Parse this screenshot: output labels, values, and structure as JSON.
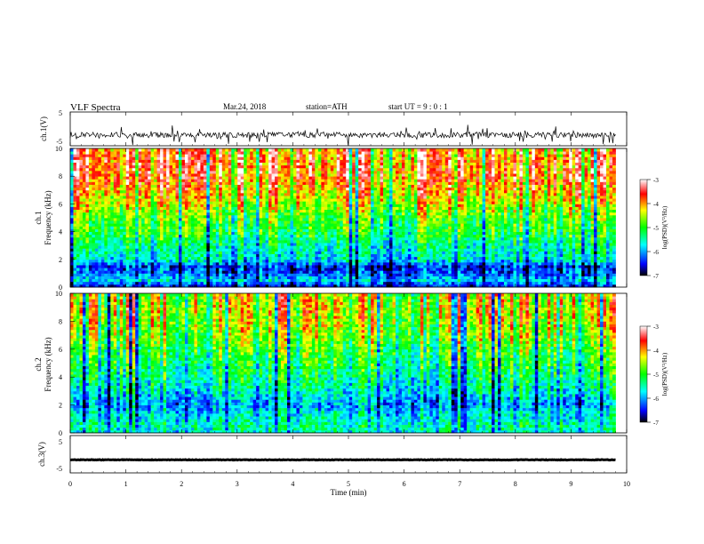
{
  "header": {
    "title": "VLF Spectra",
    "date": "Mar.24, 2018",
    "station": "station=ATH",
    "start_ut": "start UT = 9 : 0 : 1"
  },
  "chart_data": [
    {
      "type": "line",
      "ylabel": "ch.1(V)",
      "ylim": [
        -5,
        5
      ],
      "yticks": [
        "5",
        "-5"
      ],
      "baseline": -1.8,
      "xlim": [
        0,
        10
      ],
      "data_end_min": 9.8
    },
    {
      "type": "heatmap",
      "ylabel_channel": "ch.1",
      "ylabel": "Frequency (kHz)",
      "ylim": [
        0,
        10
      ],
      "yticks": [
        "0",
        "2",
        "4",
        "6",
        "8",
        "10"
      ],
      "xlim": [
        0,
        10
      ],
      "data_end_min": 9.8,
      "colorbar": {
        "label": "log(PSD)(V²/Hz)",
        "ticks": [
          "-3",
          "-4",
          "-5",
          "-6",
          "-7"
        ],
        "range": [
          -7,
          -3
        ]
      },
      "log_psd_profile": {
        "freq_khz": [
          0,
          0.5,
          1,
          1.5,
          2,
          3,
          4,
          5,
          6,
          7,
          8,
          9,
          10
        ],
        "values": [
          -6.6,
          -5.8,
          -6.2,
          -6.4,
          -5.6,
          -5.4,
          -5.0,
          -4.8,
          -4.4,
          -4.0,
          -3.7,
          -3.7,
          -3.8
        ]
      }
    },
    {
      "type": "heatmap",
      "ylabel_channel": "ch.2",
      "ylabel": "Frequency (kHz)",
      "ylim": [
        0,
        10
      ],
      "yticks": [
        "0",
        "2",
        "4",
        "6",
        "8",
        "10"
      ],
      "xlim": [
        0,
        10
      ],
      "data_end_min": 9.8,
      "colorbar": {
        "label": "log(PSD)(V²/Hz)",
        "ticks": [
          "-3",
          "-4",
          "-5",
          "-6",
          "-7"
        ],
        "range": [
          -7,
          -3
        ]
      },
      "log_psd_profile": {
        "freq_khz": [
          0,
          0.5,
          1,
          1.5,
          2,
          3,
          4,
          5,
          6,
          7,
          8,
          9,
          10
        ],
        "values": [
          -5.6,
          -5.4,
          -5.6,
          -5.7,
          -6.0,
          -5.6,
          -5.3,
          -5.1,
          -4.9,
          -4.6,
          -4.4,
          -4.3,
          -4.4
        ]
      }
    },
    {
      "type": "line",
      "ylabel": "ch.3(V)",
      "ylim": [
        -5,
        5
      ],
      "yticks": [
        "5",
        "-5"
      ],
      "baseline": -1.5,
      "xlim": [
        0,
        10
      ],
      "data_end_min": 9.8
    }
  ],
  "x_axis": {
    "label": "Time (min)",
    "ticks": [
      "0",
      "1",
      "2",
      "3",
      "4",
      "5",
      "6",
      "7",
      "8",
      "9",
      "10"
    ]
  },
  "colors": {
    "colormap": [
      "#000000",
      "#0000ff",
      "#00ffff",
      "#00ff00",
      "#ffff00",
      "#ff0000",
      "#ffffff"
    ],
    "trace": "#000000"
  }
}
